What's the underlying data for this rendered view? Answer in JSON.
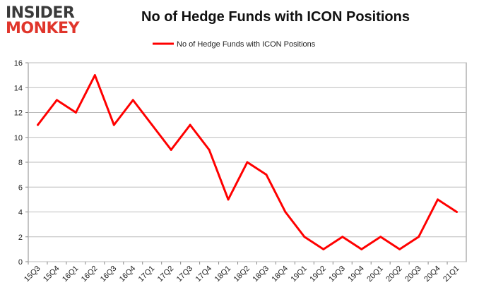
{
  "logo": {
    "line1": "INSIDER",
    "line2": "MONKEY"
  },
  "chart_data": {
    "type": "line",
    "title": "No of Hedge Funds with ICON Positions",
    "xlabel": "",
    "ylabel": "",
    "categories": [
      "15Q3",
      "15Q4",
      "16Q1",
      "16Q2",
      "16Q3",
      "16Q4",
      "17Q1",
      "17Q2",
      "17Q3",
      "17Q4",
      "18Q1",
      "18Q2",
      "18Q3",
      "18Q4",
      "19Q1",
      "19Q2",
      "19Q3",
      "19Q4",
      "20Q1",
      "20Q2",
      "20Q3",
      "20Q4",
      "21Q1"
    ],
    "series": [
      {
        "name": "No of Hedge Funds with ICON Positions",
        "color": "#ff0000",
        "values": [
          11,
          13,
          12,
          15,
          11,
          13,
          11,
          9,
          11,
          9,
          5,
          8,
          7,
          4,
          2,
          1,
          2,
          1,
          2,
          1,
          2,
          5,
          4
        ]
      }
    ],
    "ylim": [
      0,
      16
    ],
    "yticks": [
      0,
      2,
      4,
      6,
      8,
      10,
      12,
      14,
      16
    ],
    "grid": true,
    "legend": "top-center"
  }
}
